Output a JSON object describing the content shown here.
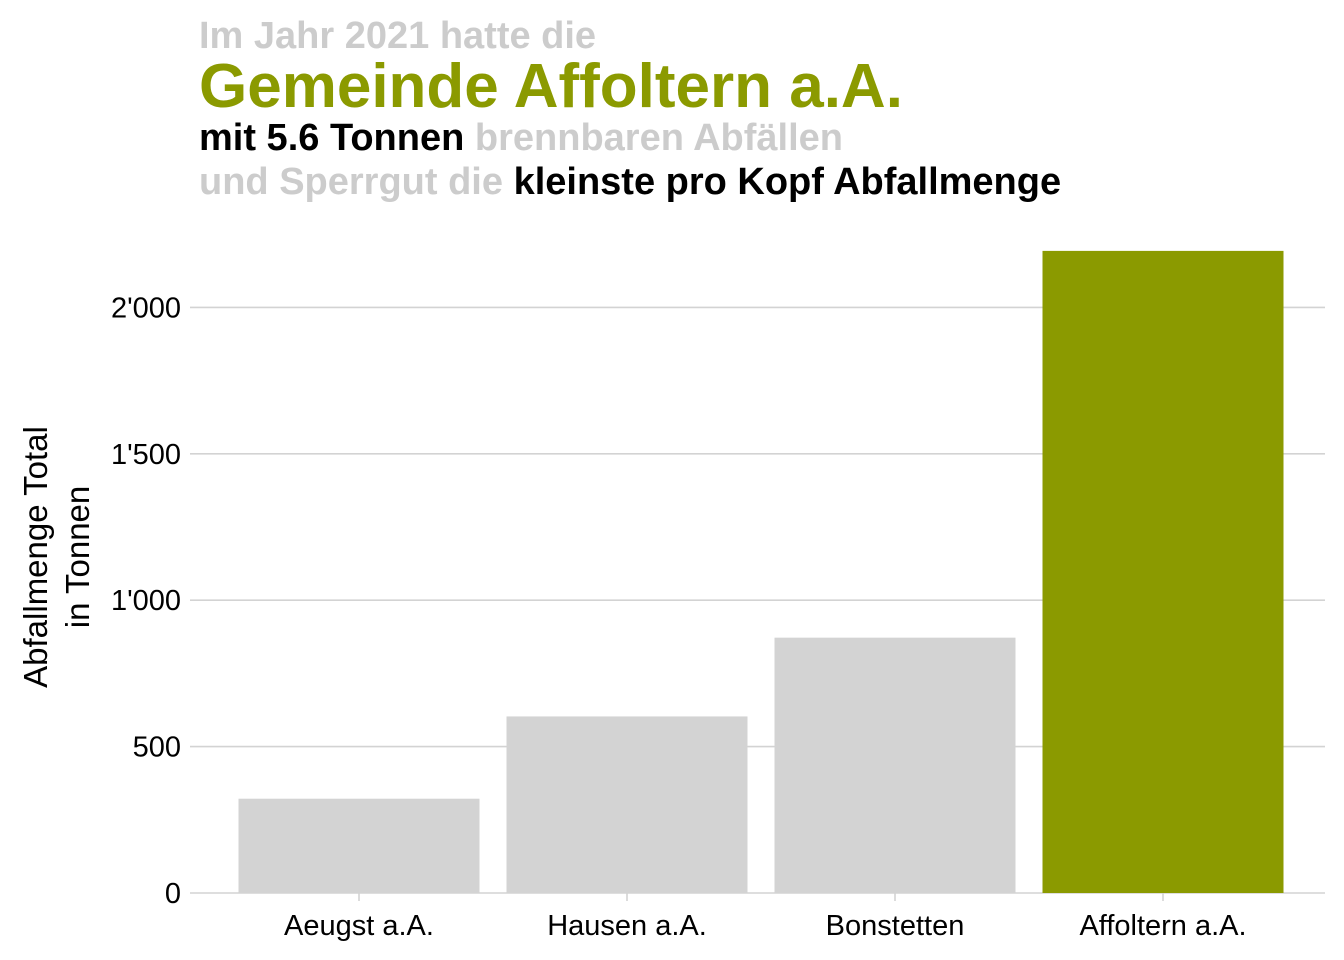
{
  "colors": {
    "highlight": "#8b9a00",
    "muted_text": "#cccccc",
    "dark_text": "#000000",
    "bar_default": "#d3d3d3",
    "grid": "#d3d3d3"
  },
  "title": {
    "line1": "Im Jahr 2021 hatte die",
    "line2": "Gemeinde Affoltern a.A.",
    "line3_bold": "mit 5.6 Tonnen",
    "line3_muted": " brennbaren Abfällen",
    "line4_muted": "und Sperrgut die ",
    "line4_bold": "kleinste pro Kopf Abfallmenge"
  },
  "chart_data": {
    "type": "bar",
    "categories": [
      "Aeugst a.A.",
      "Hausen a.A.",
      "Bonstetten",
      "Affoltern a.A."
    ],
    "values": [
      322,
      603,
      872,
      2193
    ],
    "highlight_category": "Affoltern a.A.",
    "ylabel_lines": [
      "Abfallmenge Total",
      "in Tonnen"
    ],
    "ylim": [
      0,
      2200
    ],
    "yticks": [
      0,
      500,
      1000,
      1500,
      2000
    ],
    "ytick_labels": [
      "0",
      "500",
      "1'000",
      "1'500",
      "2'000"
    ],
    "grid": true,
    "legend": "none"
  }
}
